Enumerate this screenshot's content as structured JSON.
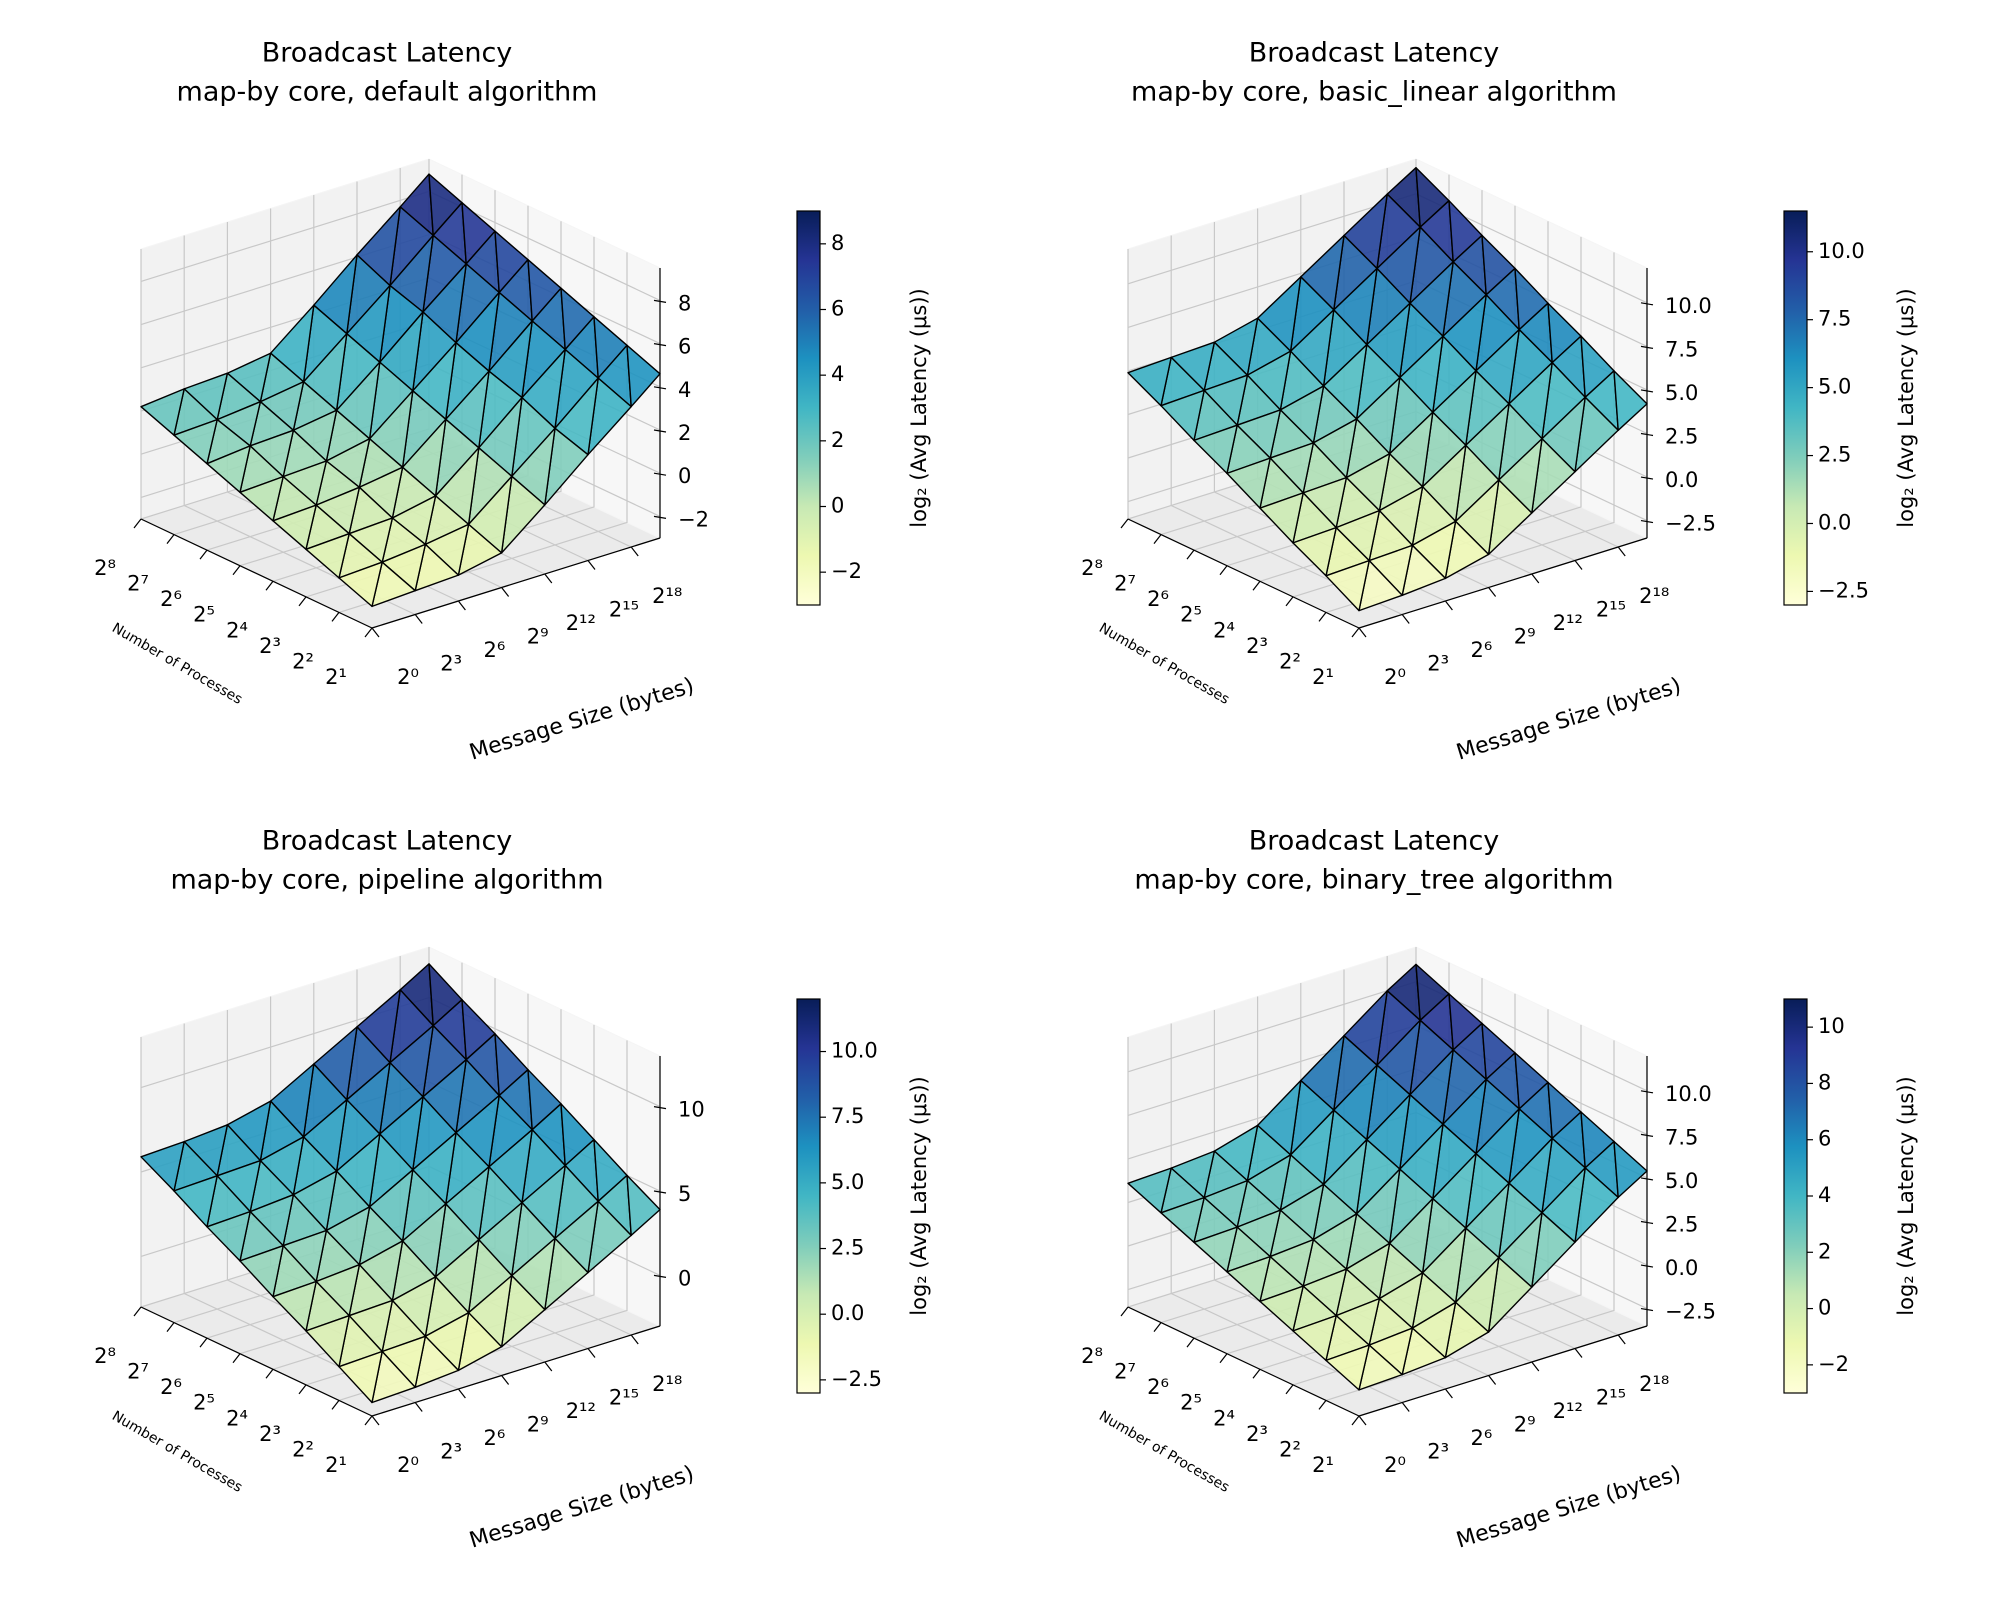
{
  "chart_data": [
    {
      "type": "surface3d",
      "title": "Broadcast Latency",
      "subtitle": "map-by core, default algorithm",
      "xlabel": "Message Size (bytes)",
      "ylabel": "Number of Processes",
      "colorbar_label": "log₂ (Avg Latency (μs))",
      "colormap": [
        "#ffffd9",
        "#edf8b1",
        "#c7e9b4",
        "#7fcdbb",
        "#41b6c4",
        "#1d91c0",
        "#225ea8",
        "#253494",
        "#081d58"
      ],
      "edgecolor": "#000000",
      "grid": true,
      "x": [
        0,
        3,
        6,
        9,
        12,
        15,
        18,
        20
      ],
      "y": [
        1,
        2,
        3,
        4,
        5,
        6,
        7,
        8
      ],
      "z": [
        [
          -2.0,
          -1.9,
          -1.8,
          -1.4,
          0.2,
          1.9,
          3.5,
          4.6
        ],
        [
          -1.4,
          -1.3,
          -1.1,
          -0.8,
          0.8,
          2.4,
          4.1,
          5.2
        ],
        [
          -0.8,
          -0.7,
          -0.6,
          -0.2,
          1.4,
          3.1,
          4.7,
          5.8
        ],
        [
          -0.2,
          -0.1,
          0.1,
          0.4,
          2.0,
          3.6,
          5.3,
          6.4
        ],
        [
          0.4,
          0.5,
          0.6,
          1.0,
          2.6,
          4.2,
          5.9,
          7.0
        ],
        [
          1.0,
          1.2,
          1.3,
          1.6,
          3.2,
          4.9,
          6.5,
          7.6
        ],
        [
          1.6,
          1.7,
          1.9,
          2.2,
          3.8,
          5.4,
          7.1,
          8.2
        ],
        [
          2.2,
          2.4,
          2.5,
          2.8,
          4.4,
          6.1,
          7.7,
          8.8
        ]
      ],
      "xlim": [
        0,
        20
      ],
      "xticks": [
        {
          "value": 0,
          "label": "2⁰"
        },
        {
          "value": 3,
          "label": "2³"
        },
        {
          "value": 6,
          "label": "2⁶"
        },
        {
          "value": 9,
          "label": "2⁹"
        },
        {
          "value": 12,
          "label": "2¹²"
        },
        {
          "value": 15,
          "label": "2¹⁵"
        },
        {
          "value": 18,
          "label": "2¹⁸"
        }
      ],
      "ylim": [
        1,
        8
      ],
      "yticks": [
        {
          "value": 1,
          "label": "2¹"
        },
        {
          "value": 2,
          "label": "2²"
        },
        {
          "value": 3,
          "label": "2³"
        },
        {
          "value": 4,
          "label": "2⁴"
        },
        {
          "value": 5,
          "label": "2⁵"
        },
        {
          "value": 6,
          "label": "2⁶"
        },
        {
          "value": 7,
          "label": "2⁷"
        },
        {
          "value": 8,
          "label": "2⁸"
        }
      ],
      "zlim": [
        -3,
        9.5
      ],
      "zticks": [
        {
          "value": -2,
          "label": "−2"
        },
        0,
        2,
        4,
        6,
        8
      ],
      "clim": [
        -3,
        9
      ],
      "cticks": [
        {
          "value": -2,
          "label": "−2"
        },
        0,
        2,
        4,
        6,
        8
      ]
    },
    {
      "type": "surface3d",
      "title": "Broadcast Latency",
      "subtitle": "map-by core, basic_linear algorithm",
      "xlabel": "Message Size (bytes)",
      "ylabel": "Number of Processes",
      "colorbar_label": "log₂ (Avg Latency (μs))",
      "colormap": [
        "#ffffd9",
        "#edf8b1",
        "#c7e9b4",
        "#7fcdbb",
        "#41b6c4",
        "#1d91c0",
        "#225ea8",
        "#253494",
        "#081d58"
      ],
      "edgecolor": "#000000",
      "grid": true,
      "x": [
        0,
        3,
        6,
        9,
        12,
        15,
        18,
        20
      ],
      "y": [
        1,
        2,
        3,
        4,
        5,
        6,
        7,
        8
      ],
      "z": [
        [
          -2.5,
          -2.4,
          -2.2,
          -1.6,
          0.0,
          1.6,
          3.2,
          4.2
        ],
        [
          -1.4,
          -1.3,
          -1.2,
          -0.6,
          1.0,
          2.6,
          4.2,
          5.2
        ],
        [
          -0.4,
          -0.3,
          -0.1,
          0.5,
          2.1,
          3.7,
          5.3,
          6.3
        ],
        [
          0.7,
          0.8,
          0.9,
          1.5,
          3.1,
          4.7,
          6.3,
          7.3
        ],
        [
          1.8,
          1.9,
          2.0,
          2.6,
          4.2,
          5.8,
          7.4,
          8.4
        ],
        [
          2.8,
          2.9,
          3.0,
          3.6,
          5.2,
          6.8,
          8.4,
          9.4
        ],
        [
          3.9,
          4.0,
          4.1,
          4.7,
          6.3,
          7.9,
          9.5,
          10.5
        ],
        [
          4.9,
          5.0,
          5.1,
          5.7,
          7.3,
          8.9,
          10.5,
          11.5
        ]
      ],
      "xlim": [
        0,
        20
      ],
      "xticks": [
        {
          "value": 0,
          "label": "2⁰"
        },
        {
          "value": 3,
          "label": "2³"
        },
        {
          "value": 6,
          "label": "2⁶"
        },
        {
          "value": 9,
          "label": "2⁹"
        },
        {
          "value": 12,
          "label": "2¹²"
        },
        {
          "value": 15,
          "label": "2¹⁵"
        },
        {
          "value": 18,
          "label": "2¹⁸"
        }
      ],
      "ylim": [
        1,
        8
      ],
      "yticks": [
        {
          "value": 1,
          "label": "2¹"
        },
        {
          "value": 2,
          "label": "2²"
        },
        {
          "value": 3,
          "label": "2³"
        },
        {
          "value": 4,
          "label": "2⁴"
        },
        {
          "value": 5,
          "label": "2⁵"
        },
        {
          "value": 6,
          "label": "2⁶"
        },
        {
          "value": 7,
          "label": "2⁷"
        },
        {
          "value": 8,
          "label": "2⁸"
        }
      ],
      "zlim": [
        -3.5,
        12
      ],
      "zticks": [
        {
          "value": -2.5,
          "label": "−2.5"
        },
        {
          "value": 0,
          "label": "0.0"
        },
        2.5,
        {
          "value": 5,
          "label": "5.0"
        },
        7.5,
        {
          "value": 10,
          "label": "10.0"
        }
      ],
      "clim": [
        -3,
        11.5
      ],
      "cticks": [
        {
          "value": -2.5,
          "label": "−2.5"
        },
        {
          "value": 0,
          "label": "0.0"
        },
        2.5,
        {
          "value": 5,
          "label": "5.0"
        },
        7.5,
        {
          "value": 10,
          "label": "10.0"
        }
      ]
    },
    {
      "type": "surface3d",
      "title": "Broadcast Latency",
      "subtitle": "map-by core, pipeline algorithm",
      "xlabel": "Message Size (bytes)",
      "ylabel": "Number of Processes",
      "colorbar_label": "log₂ (Avg Latency (μs))",
      "colormap": [
        "#ffffd9",
        "#edf8b1",
        "#c7e9b4",
        "#7fcdbb",
        "#41b6c4",
        "#1d91c0",
        "#225ea8",
        "#253494",
        "#081d58"
      ],
      "edgecolor": "#000000",
      "grid": true,
      "x": [
        0,
        3,
        6,
        9,
        12,
        15,
        18,
        20
      ],
      "y": [
        1,
        2,
        3,
        4,
        5,
        6,
        7,
        8
      ],
      "z": [
        [
          -2.2,
          -2.1,
          -1.9,
          -1.3,
          0.1,
          1.5,
          2.9,
          3.9
        ],
        [
          -1.0,
          -0.9,
          -0.8,
          -0.2,
          1.2,
          2.6,
          4.0,
          5.0
        ],
        [
          0.2,
          0.3,
          0.4,
          1.0,
          2.4,
          3.8,
          5.2,
          6.2
        ],
        [
          1.3,
          1.4,
          1.6,
          2.2,
          3.6,
          5.0,
          6.4,
          7.4
        ],
        [
          2.5,
          2.6,
          2.7,
          3.3,
          4.7,
          6.1,
          7.5,
          8.5
        ],
        [
          3.6,
          3.7,
          3.9,
          4.5,
          5.9,
          7.3,
          8.7,
          9.7
        ],
        [
          4.8,
          4.9,
          5.0,
          5.6,
          7.0,
          8.4,
          9.8,
          10.8
        ],
        [
          5.9,
          6.0,
          6.2,
          6.8,
          8.2,
          9.6,
          11.0,
          12.0
        ]
      ],
      "xlim": [
        0,
        20
      ],
      "xticks": [
        {
          "value": 0,
          "label": "2⁰"
        },
        {
          "value": 3,
          "label": "2³"
        },
        {
          "value": 6,
          "label": "2⁶"
        },
        {
          "value": 9,
          "label": "2⁹"
        },
        {
          "value": 12,
          "label": "2¹²"
        },
        {
          "value": 15,
          "label": "2¹⁵"
        },
        {
          "value": 18,
          "label": "2¹⁸"
        }
      ],
      "ylim": [
        1,
        8
      ],
      "yticks": [
        {
          "value": 1,
          "label": "2¹"
        },
        {
          "value": 2,
          "label": "2²"
        },
        {
          "value": 3,
          "label": "2³"
        },
        {
          "value": 4,
          "label": "2⁴"
        },
        {
          "value": 5,
          "label": "2⁵"
        },
        {
          "value": 6,
          "label": "2⁶"
        },
        {
          "value": 7,
          "label": "2⁷"
        },
        {
          "value": 8,
          "label": "2⁸"
        }
      ],
      "zlim": [
        -3,
        13
      ],
      "zticks": [
        0,
        5,
        10
      ],
      "clim": [
        -3,
        12
      ],
      "cticks": [
        {
          "value": -2.5,
          "label": "−2.5"
        },
        {
          "value": 0,
          "label": "0.0"
        },
        2.5,
        {
          "value": 5,
          "label": "5.0"
        },
        7.5,
        {
          "value": 10,
          "label": "10.0"
        }
      ]
    },
    {
      "type": "surface3d",
      "title": "Broadcast Latency",
      "subtitle": "map-by core, binary_tree algorithm",
      "xlabel": "Message Size (bytes)",
      "ylabel": "Number of Processes",
      "colorbar_label": "log₂ (Avg Latency (μs))",
      "colormap": [
        "#ffffd9",
        "#edf8b1",
        "#c7e9b4",
        "#7fcdbb",
        "#41b6c4",
        "#1d91c0",
        "#225ea8",
        "#253494",
        "#081d58"
      ],
      "edgecolor": "#000000",
      "grid": true,
      "x": [
        0,
        3,
        6,
        9,
        12,
        15,
        18,
        20
      ],
      "y": [
        1,
        2,
        3,
        4,
        5,
        6,
        7,
        8
      ],
      "z": [
        [
          -2.0,
          -1.9,
          -1.7,
          -1.0,
          0.8,
          2.6,
          4.4,
          5.4
        ],
        [
          -1.2,
          -1.1,
          -0.9,
          -0.2,
          1.6,
          3.4,
          5.2,
          6.2
        ],
        [
          -0.4,
          -0.3,
          -0.1,
          0.6,
          2.4,
          4.2,
          6.0,
          7.0
        ],
        [
          0.4,
          0.5,
          0.7,
          1.4,
          3.2,
          5.0,
          6.8,
          7.8
        ],
        [
          1.2,
          1.3,
          1.5,
          2.2,
          4.0,
          5.8,
          7.6,
          8.6
        ],
        [
          2.0,
          2.1,
          2.3,
          3.0,
          4.8,
          6.6,
          8.4,
          9.4
        ],
        [
          2.8,
          2.9,
          3.1,
          3.8,
          5.6,
          7.4,
          9.2,
          10.2
        ],
        [
          3.6,
          3.7,
          3.9,
          4.6,
          6.4,
          8.2,
          10.0,
          11.0
        ]
      ],
      "xlim": [
        0,
        20
      ],
      "xticks": [
        {
          "value": 0,
          "label": "2⁰"
        },
        {
          "value": 3,
          "label": "2³"
        },
        {
          "value": 6,
          "label": "2⁶"
        },
        {
          "value": 9,
          "label": "2⁹"
        },
        {
          "value": 12,
          "label": "2¹²"
        },
        {
          "value": 15,
          "label": "2¹⁵"
        },
        {
          "value": 18,
          "label": "2¹⁸"
        }
      ],
      "ylim": [
        1,
        8
      ],
      "yticks": [
        {
          "value": 1,
          "label": "2¹"
        },
        {
          "value": 2,
          "label": "2²"
        },
        {
          "value": 3,
          "label": "2³"
        },
        {
          "value": 4,
          "label": "2⁴"
        },
        {
          "value": 5,
          "label": "2⁵"
        },
        {
          "value": 6,
          "label": "2⁶"
        },
        {
          "value": 7,
          "label": "2⁷"
        },
        {
          "value": 8,
          "label": "2⁸"
        }
      ],
      "zlim": [
        -3.5,
        12
      ],
      "zticks": [
        {
          "value": -2.5,
          "label": "−2.5"
        },
        {
          "value": 0,
          "label": "0.0"
        },
        2.5,
        {
          "value": 5,
          "label": "5.0"
        },
        7.5,
        {
          "value": 10,
          "label": "10.0"
        }
      ],
      "clim": [
        -3,
        11
      ],
      "cticks": [
        {
          "value": -2,
          "label": "−2"
        },
        0,
        2,
        4,
        6,
        8,
        10
      ]
    }
  ]
}
